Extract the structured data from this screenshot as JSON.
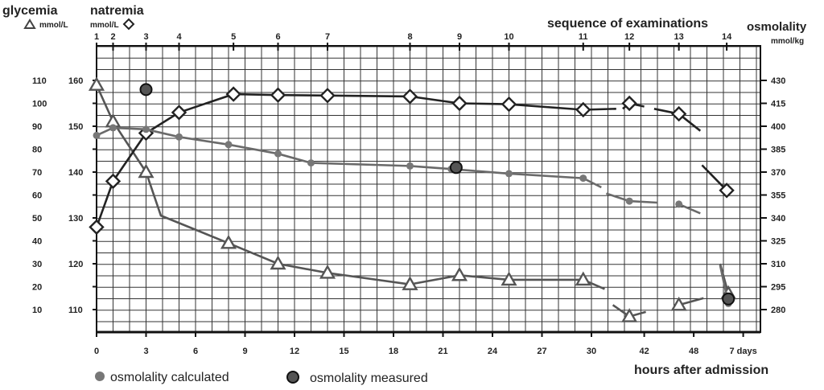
{
  "chart_data": {
    "type": "line",
    "titles": {
      "glycemia": "glycemia",
      "glycemia_unit": "mmol/L",
      "natremia": "natremia",
      "natremia_unit": "mmol/L",
      "sequence": "sequence of examinations",
      "osmolality": "osmolality",
      "osmolality_unit": "mmol/kg",
      "xlabel": "hours after admission"
    },
    "x_tick_labels": [
      "0",
      "3",
      "6",
      "9",
      "12",
      "15",
      "18",
      "21",
      "24",
      "27",
      "30",
      "42",
      "48",
      "7 days"
    ],
    "sequence_labels": [
      "1",
      "2",
      "3",
      "4",
      "5",
      "6",
      "7",
      "8",
      "9",
      "10",
      "11",
      "12",
      "13",
      "14"
    ],
    "sequence_x": [
      0,
      1,
      3,
      5,
      8.3,
      11,
      14,
      19,
      22,
      25,
      29.5,
      32.3,
      35.3,
      38.2
    ],
    "glycemia_axis": {
      "ticks": [
        "10",
        "20",
        "30",
        "40",
        "50",
        "60",
        "70",
        "80",
        "90",
        "100",
        "110"
      ],
      "range": [
        0,
        110
      ]
    },
    "natremia_axis": {
      "ticks": [
        "110",
        "120",
        "130",
        "140",
        "150",
        "160"
      ],
      "range": [
        110,
        160
      ]
    },
    "osmolality_axis": {
      "ticks": [
        "280",
        "295",
        "310",
        "325",
        "340",
        "355",
        "370",
        "385",
        "400",
        "415",
        "430"
      ],
      "range": [
        280,
        430
      ]
    },
    "legend": {
      "calculated": "osmolality calculated",
      "measured": "osmolality measured"
    },
    "series": [
      {
        "name": "glycemia",
        "color": "#555555",
        "marker": "triangle",
        "segments": [
          [
            [
              0,
              108
            ],
            [
              1,
              92
            ],
            [
              3,
              70
            ],
            [
              3.9,
              51
            ],
            [
              8,
              39
            ],
            [
              11,
              30
            ],
            [
              14,
              26
            ],
            [
              19,
              21
            ],
            [
              22,
              25
            ],
            [
              25,
              23
            ],
            [
              29.5,
              23
            ],
            [
              30.8,
              19
            ]
          ],
          [
            [
              31.3,
              12
            ],
            [
              32.3,
              7
            ],
            [
              33.3,
              9
            ]
          ],
          [
            [
              35.3,
              12
            ],
            [
              36.8,
              15
            ]
          ],
          [
            [
              37.8,
              30
            ],
            [
              38.3,
              17
            ]
          ]
        ]
      },
      {
        "name": "natremia",
        "color": "#222222",
        "marker": "diamond",
        "segments": [
          [
            [
              0,
              128
            ],
            [
              1,
              138
            ],
            [
              3,
              148.5
            ],
            [
              5,
              153
            ],
            [
              8.3,
              157
            ],
            [
              11,
              156.8
            ],
            [
              14,
              156.7
            ],
            [
              19,
              156.5
            ],
            [
              22,
              155
            ],
            [
              25,
              154.8
            ],
            [
              29.5,
              153.6
            ],
            [
              31.5,
              153.8
            ]
          ],
          [
            [
              31.9,
              153.8
            ],
            [
              32.3,
              155
            ],
            [
              33.2,
              154.3
            ]
          ],
          [
            [
              33.8,
              153.8
            ],
            [
              35.3,
              152.7
            ],
            [
              36.6,
              149
            ]
          ],
          [
            [
              36.7,
              141.5
            ],
            [
              38.2,
              136
            ]
          ]
        ]
      },
      {
        "name": "osmolality calculated",
        "color": "#6a6a6a",
        "marker": "dot",
        "segments": [
          [
            [
              0,
              394
            ],
            [
              1,
              399
            ],
            [
              3,
              398
            ],
            [
              5,
              393
            ],
            [
              8,
              388
            ],
            [
              11,
              382
            ],
            [
              13,
              376
            ],
            [
              19,
              374
            ],
            [
              21.5,
              372
            ],
            [
              25,
              369
            ],
            [
              29.5,
              366
            ],
            [
              30.6,
              360
            ]
          ],
          [
            [
              30.9,
              356
            ],
            [
              32.3,
              351
            ],
            [
              34,
              350
            ]
          ],
          [
            [
              35.3,
              349
            ],
            [
              36.6,
              343
            ]
          ],
          [
            [
              37.8,
              309
            ],
            [
              38.3,
              284
            ]
          ]
        ]
      },
      {
        "name": "osmolality measured",
        "color": "#333333",
        "marker": "circle",
        "points": [
          [
            3,
            424
          ],
          [
            21.8,
            373
          ],
          [
            38.3,
            287
          ]
        ]
      }
    ]
  }
}
